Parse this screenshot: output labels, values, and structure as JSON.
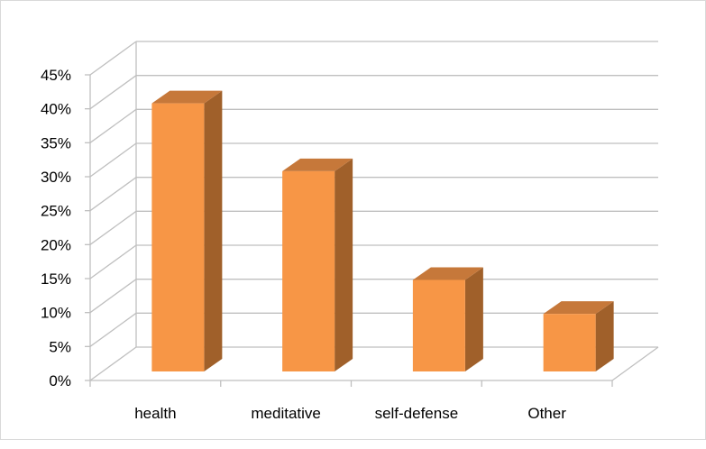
{
  "chart_data": {
    "type": "bar",
    "style": "3d-column",
    "categories": [
      "health",
      "meditative",
      "self-defense",
      "Other"
    ],
    "values": [
      42,
      32,
      16,
      11
    ],
    "ylim": [
      0,
      45
    ],
    "ytick_labels": [
      "0%",
      "5%",
      "10%",
      "15%",
      "20%",
      "25%",
      "30%",
      "35%",
      "40%",
      "45%"
    ],
    "title": "",
    "xlabel": "",
    "ylabel": "",
    "grid": true,
    "legend": "none",
    "colors": {
      "bar_front": "#F79646",
      "bar_side": "#A0602A",
      "bar_top": "#C6783A",
      "gridline": "#bfbfbf"
    }
  }
}
